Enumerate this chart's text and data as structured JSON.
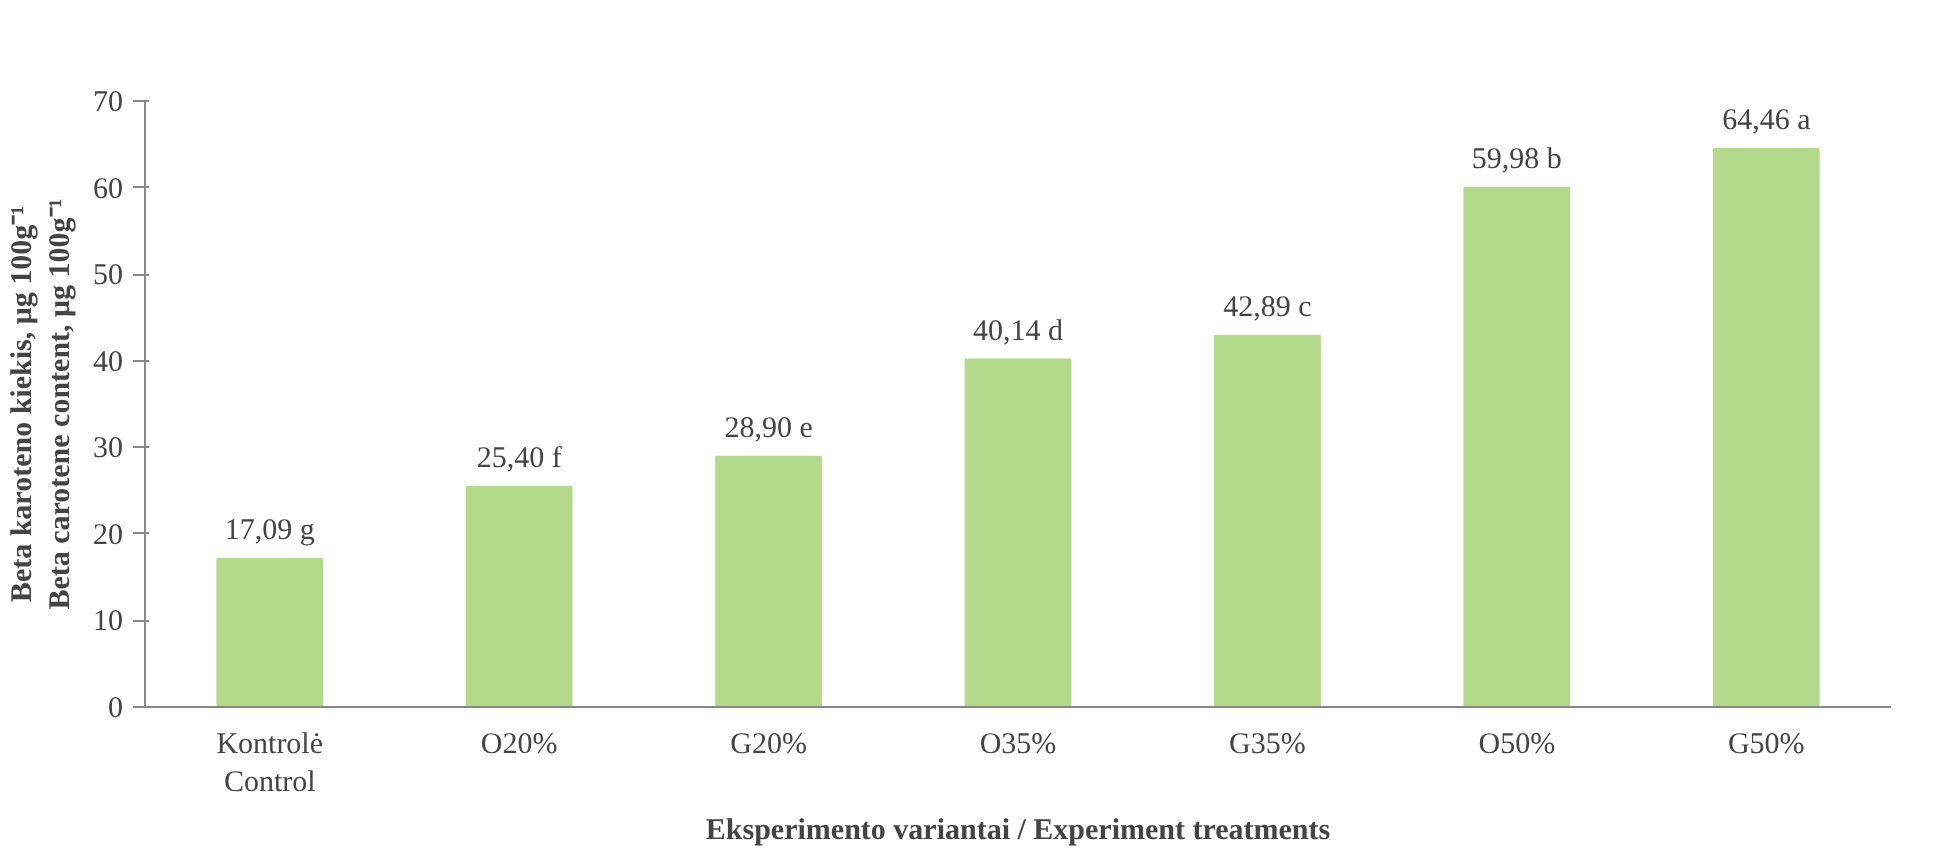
{
  "chart_data": {
    "type": "bar",
    "xlabel": "Eksperimento variantai / Experiment treatments",
    "ylabel": "Beta karoteno kiekis, μg 100g⁻¹\nBeta carotene content, μg 100g⁻¹",
    "categories": [
      "Kontrolė\nControl",
      "O20%",
      "G20%",
      "O35%",
      "G35%",
      "O50%",
      "G50%"
    ],
    "values": [
      17.09,
      25.4,
      28.9,
      40.14,
      42.89,
      59.98,
      64.46
    ],
    "value_labels": [
      "17,09 g",
      "25,40 f",
      "28,90 e",
      "40,14 d",
      "42,89 c",
      "59,98 b",
      "64,46 a"
    ],
    "color": "#b3d98a",
    "ylim": [
      0,
      70
    ],
    "yticks": [
      0,
      10,
      20,
      30,
      40,
      50,
      60,
      70
    ],
    "grid": false
  }
}
